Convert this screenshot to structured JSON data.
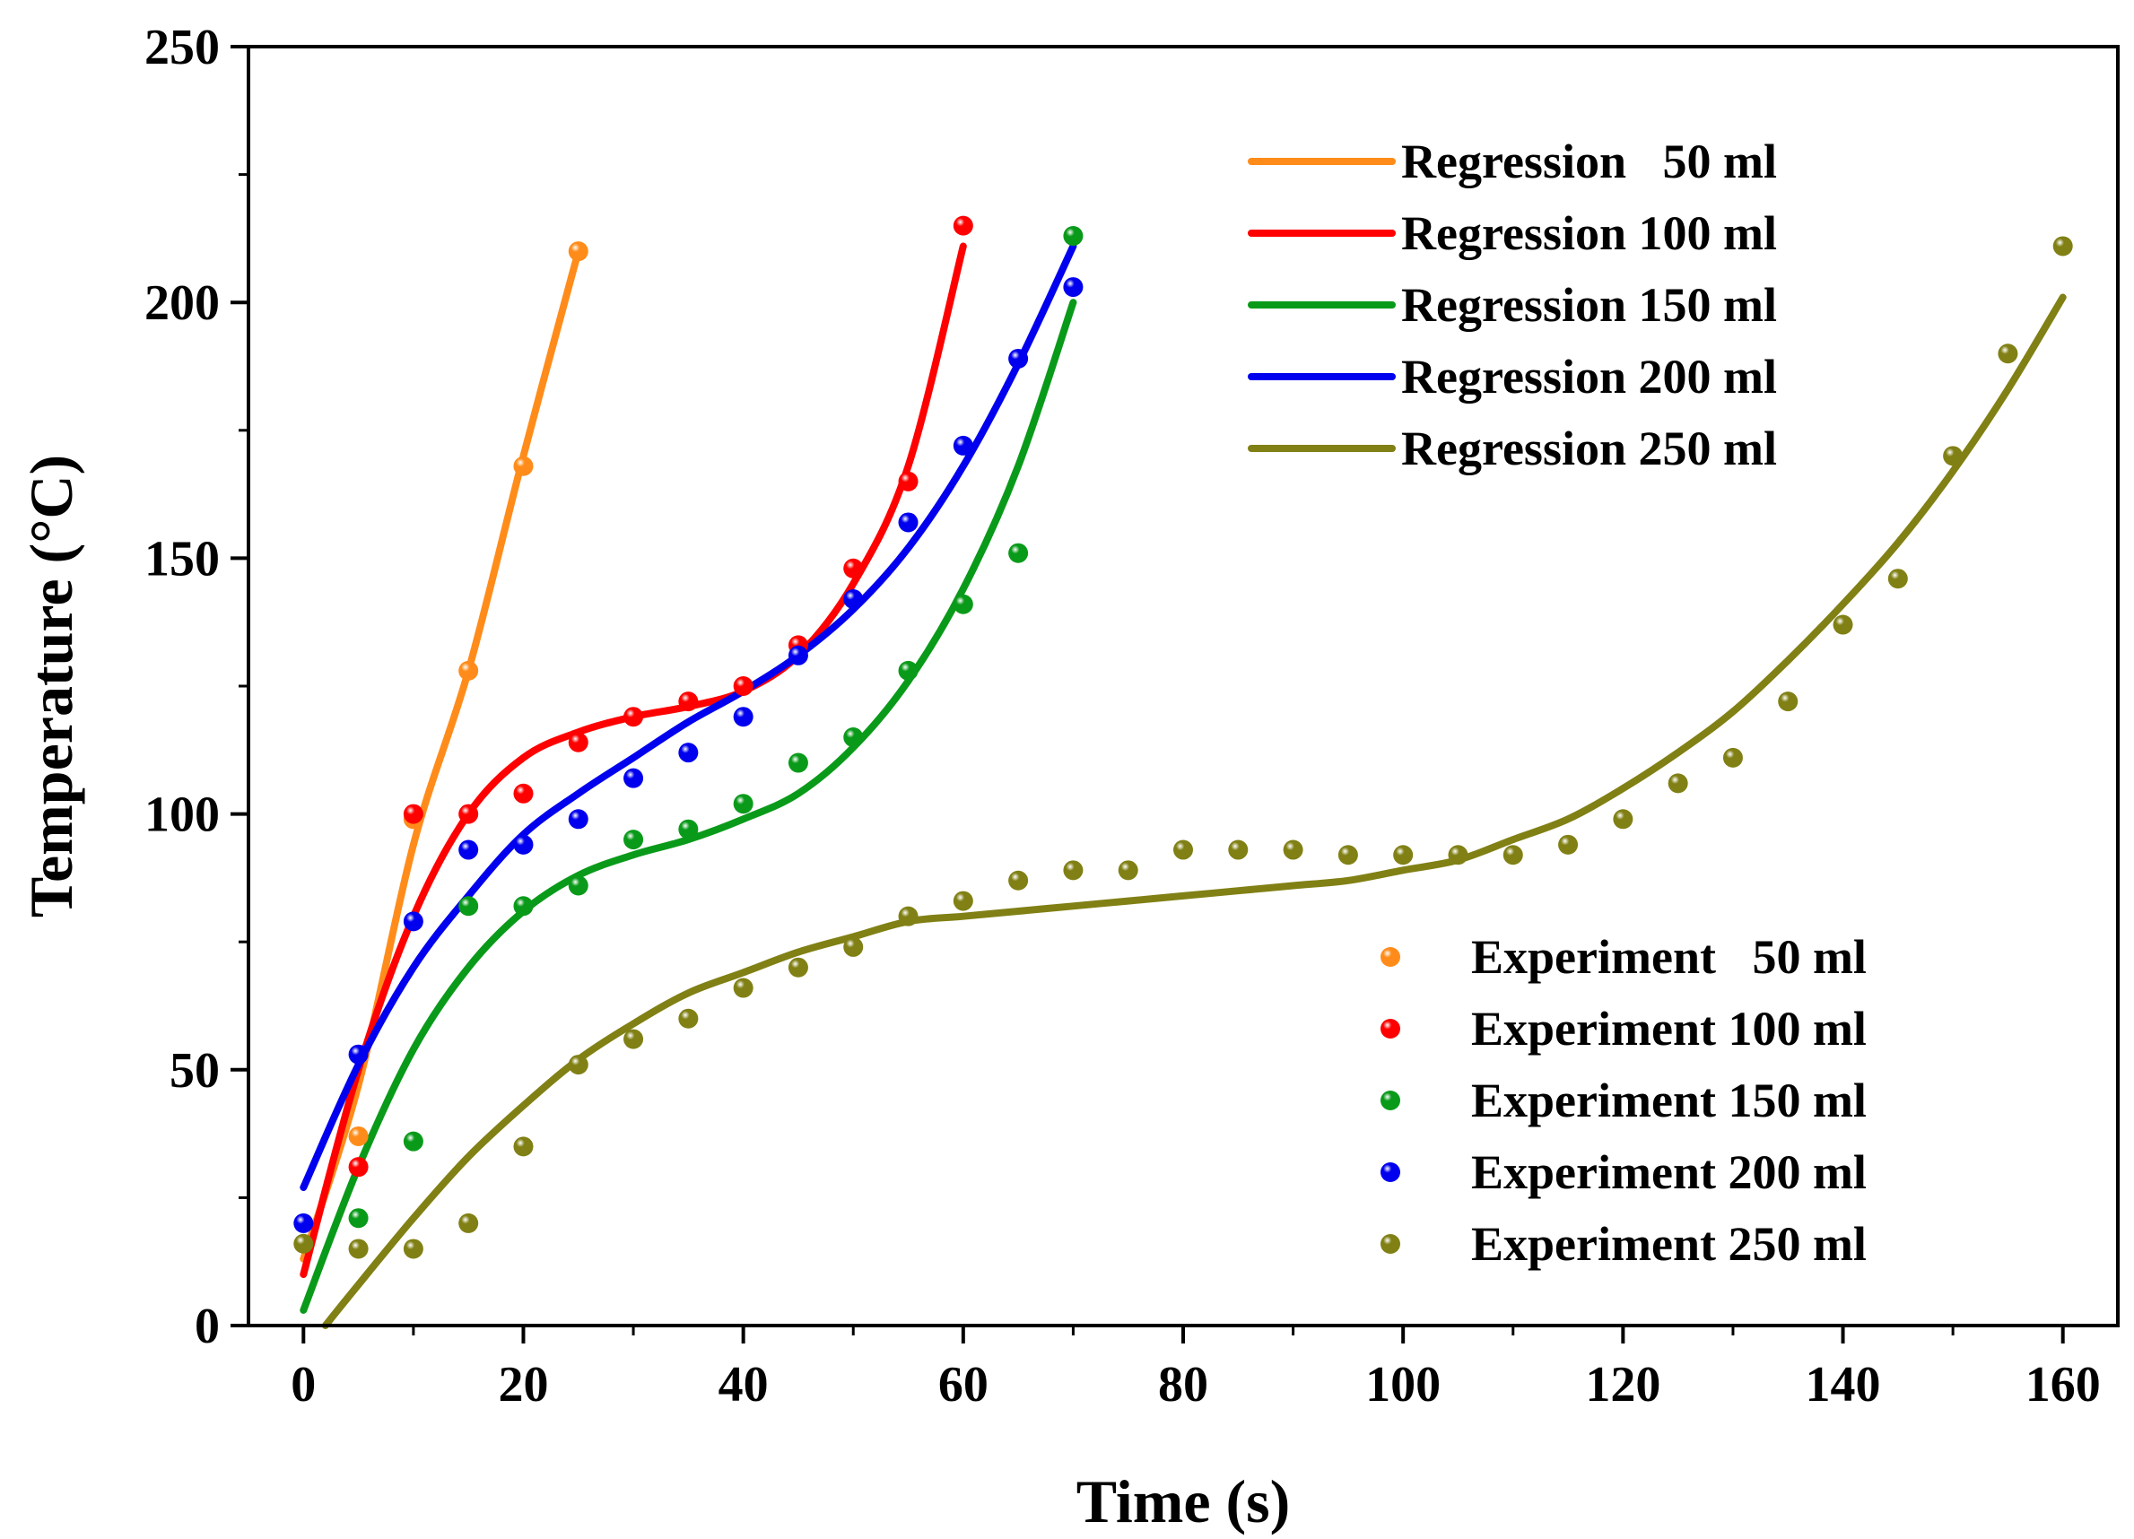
{
  "chart_data": {
    "type": "scatter",
    "xlabel": "Time (s)",
    "ylabel": "Temperature (°C)",
    "xlim": [
      -5,
      165
    ],
    "ylim": [
      0,
      250
    ],
    "xticks": [
      0,
      20,
      40,
      60,
      80,
      100,
      120,
      140,
      160
    ],
    "yticks": [
      0,
      50,
      100,
      150,
      200,
      250
    ],
    "legend_regression": [
      "Regression   50 ml",
      "Regression 100 ml",
      "Regression 150 ml",
      "Regression 200 ml",
      "Regression 250 ml"
    ],
    "legend_experiment": [
      "Experiment   50 ml",
      "Experiment 100 ml",
      "Experiment 150 ml",
      "Experiment 200 ml",
      "Experiment 250 ml"
    ],
    "series": [
      {
        "name": "50 ml",
        "color": "#ff8c1a",
        "experiment": {
          "x": [
            5,
            10,
            15,
            20,
            25
          ],
          "y": [
            37,
            99,
            128,
            168,
            210
          ]
        },
        "regression": {
          "x": [
            0,
            5,
            10,
            15,
            20,
            25
          ],
          "y": [
            13,
            47,
            94,
            128,
            170,
            210
          ]
        }
      },
      {
        "name": "100 ml",
        "color": "#ff0000",
        "experiment": {
          "x": [
            5,
            10,
            15,
            20,
            25,
            30,
            35,
            40,
            45,
            50,
            55,
            60
          ],
          "y": [
            31,
            100,
            100,
            104,
            114,
            119,
            122,
            125,
            133,
            148,
            165,
            215
          ]
        },
        "regression": {
          "x": [
            0,
            5,
            10,
            15,
            20,
            25,
            30,
            35,
            40,
            45,
            50,
            55,
            60
          ],
          "y": [
            10,
            50,
            80,
            100,
            111,
            116,
            119,
            121,
            124,
            131,
            145,
            168,
            211
          ]
        }
      },
      {
        "name": "150 ml",
        "color": "#0a9a1a",
        "experiment": {
          "x": [
            5,
            10,
            15,
            20,
            25,
            30,
            35,
            40,
            45,
            50,
            55,
            60,
            65,
            70
          ],
          "y": [
            21,
            36,
            82,
            82,
            86,
            95,
            97,
            102,
            110,
            115,
            128,
            141,
            151,
            213
          ]
        },
        "regression": {
          "x": [
            0,
            5,
            10,
            15,
            20,
            25,
            30,
            35,
            40,
            45,
            50,
            55,
            60,
            65,
            70
          ],
          "y": [
            3,
            31,
            54,
            70,
            81,
            88,
            92,
            95,
            99,
            104,
            113,
            126,
            144,
            168,
            200
          ]
        }
      },
      {
        "name": "200 ml",
        "color": "#0000ee",
        "experiment": {
          "x": [
            0,
            5,
            10,
            15,
            20,
            25,
            30,
            35,
            40,
            45,
            50,
            55,
            60,
            65,
            70
          ],
          "y": [
            20,
            53,
            79,
            93,
            94,
            99,
            107,
            112,
            119,
            131,
            142,
            157,
            172,
            189,
            203
          ]
        },
        "regression": {
          "x": [
            0,
            5,
            10,
            15,
            20,
            25,
            30,
            35,
            40,
            45,
            50,
            55,
            60,
            65,
            70
          ],
          "y": [
            27,
            51,
            70,
            84,
            96,
            104,
            111,
            118,
            124,
            131,
            140,
            152,
            168,
            188,
            211
          ]
        }
      },
      {
        "name": "250 ml",
        "color": "#808015",
        "experiment": {
          "x": [
            0,
            5,
            10,
            15,
            20,
            25,
            30,
            35,
            40,
            45,
            50,
            55,
            60,
            65,
            70,
            75,
            80,
            85,
            90,
            95,
            100,
            105,
            110,
            115,
            120,
            125,
            130,
            135,
            140,
            145,
            150,
            155,
            160
          ],
          "y": [
            16,
            15,
            15,
            20,
            35,
            51,
            56,
            60,
            66,
            70,
            74,
            80,
            83,
            87,
            89,
            89,
            93,
            93,
            93,
            92,
            92,
            92,
            92,
            94,
            99,
            106,
            111,
            122,
            137,
            146,
            170,
            190,
            211
          ]
        },
        "regression": {
          "x": [
            2,
            5,
            10,
            15,
            20,
            25,
            30,
            35,
            40,
            45,
            50,
            55,
            60,
            65,
            70,
            75,
            80,
            85,
            90,
            95,
            100,
            105,
            110,
            115,
            120,
            125,
            130,
            135,
            140,
            145,
            150,
            155,
            160
          ],
          "y": [
            0,
            8,
            21,
            33,
            43,
            52,
            59,
            65,
            69,
            73,
            76,
            79,
            80,
            81,
            82,
            83,
            84,
            85,
            86,
            87,
            89,
            91,
            95,
            99,
            105,
            112,
            120,
            130,
            141,
            153,
            167,
            183,
            201
          ]
        }
      }
    ]
  }
}
